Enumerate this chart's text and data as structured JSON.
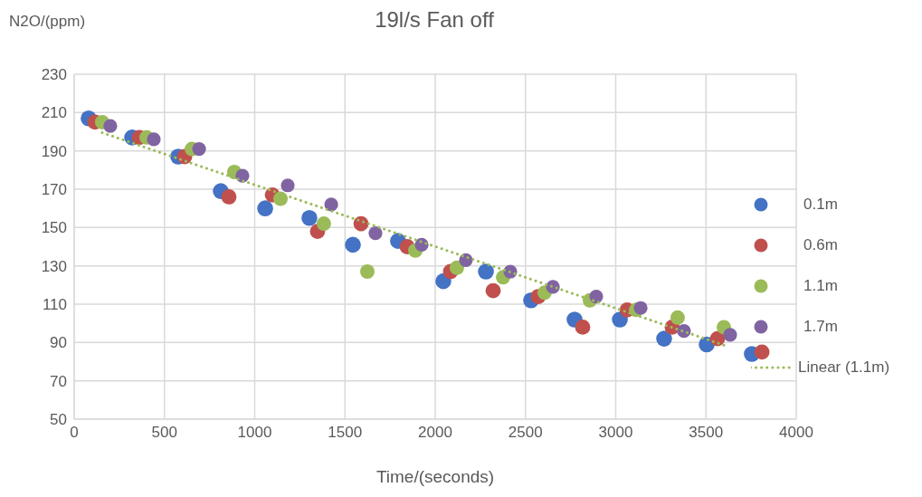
{
  "chart_data": {
    "type": "scatter",
    "title": "19l/s Fan off",
    "xlabel": "Time/(seconds)",
    "ylabel": "N2O/(ppm)",
    "xlim": [
      0,
      4000
    ],
    "xticks": [
      0,
      500,
      1000,
      1500,
      2000,
      2500,
      3000,
      3500,
      4000
    ],
    "ylim": [
      50,
      230
    ],
    "yticks": [
      50,
      70,
      90,
      110,
      130,
      150,
      170,
      190,
      210,
      230
    ],
    "grid": true,
    "legend": "right",
    "marker": "circle",
    "series": [
      {
        "name": "0.1m",
        "color": "#4472c4",
        "x": [
          80,
          321,
          576,
          812,
          1058,
          1303,
          1544,
          1794,
          2045,
          2281,
          2531,
          2772,
          3023,
          3268,
          3504,
          3754
        ],
        "values": [
          207,
          197,
          187,
          169,
          160,
          155,
          141,
          143,
          122,
          127,
          112,
          102,
          102,
          92,
          89,
          84
        ]
      },
      {
        "name": "0.6m",
        "color": "#c0504d",
        "x": [
          115,
          361,
          612,
          857,
          1098,
          1348,
          1589,
          1845,
          2085,
          2321,
          2571,
          2817,
          3063,
          3313,
          3564,
          3810
        ],
        "values": [
          205,
          197,
          187,
          166,
          167,
          148,
          152,
          140,
          127,
          117,
          114,
          98,
          107,
          98,
          92,
          85
        ]
      },
      {
        "name": "1.1m",
        "color": "#9bbb59",
        "x": [
          155,
          401,
          652,
          887,
          1143,
          1383,
          1624,
          1890,
          2120,
          2376,
          2606,
          2857,
          3113,
          3343,
          3599
        ],
        "values": [
          205,
          197,
          191,
          179,
          165,
          152,
          127,
          138,
          129,
          124,
          116,
          112,
          107,
          103,
          98
        ]
      },
      {
        "name": "1.7m",
        "color": "#8064a2",
        "x": [
          200,
          441,
          692,
          932,
          1183,
          1424,
          1669,
          1925,
          2170,
          2416,
          2652,
          2892,
          3138,
          3378,
          3634
        ],
        "values": [
          203,
          196,
          191,
          177,
          172,
          162,
          147,
          141,
          133,
          127,
          119,
          114,
          108,
          96,
          94
        ]
      },
      {
        "name": "Linear (1.1m)",
        "type": "line",
        "marker": "none",
        "line_style": "dotted",
        "color": "#9bbb59",
        "x": [
          155,
          3599
        ],
        "values": [
          199.5,
          88.6
        ]
      }
    ]
  }
}
